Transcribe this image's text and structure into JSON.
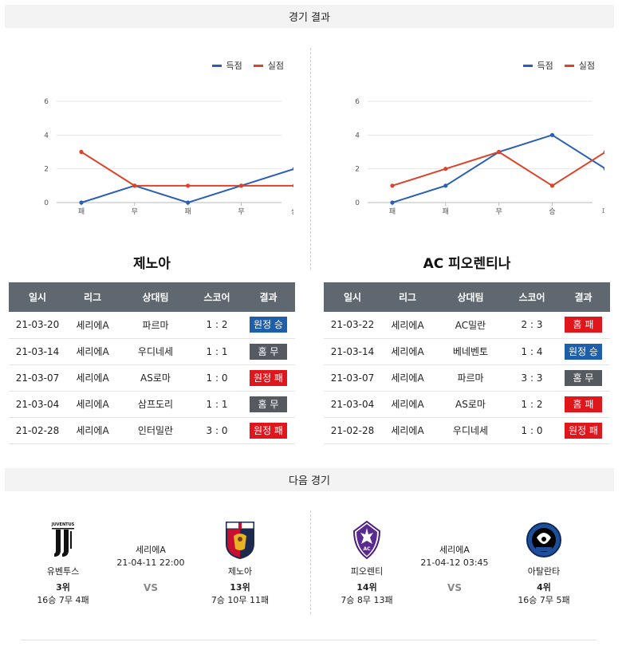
{
  "sections": {
    "results_title": "경기 결과",
    "next_title": "다음 경기"
  },
  "legend": {
    "scored": "득점",
    "conceded": "실점"
  },
  "colors": {
    "scored": "#2b5fb4",
    "conceded": "#d9442b",
    "win": "#1f5ea8",
    "lose": "#e0161d",
    "draw": "#555a60",
    "header": "#5f6771"
  },
  "chart_data": [
    {
      "type": "line",
      "categories": [
        "패",
        "무",
        "패",
        "무",
        "승"
      ],
      "ylim": [
        0,
        6
      ],
      "yticks": [
        0,
        2,
        4,
        6
      ],
      "series": [
        {
          "name": "득점",
          "values": [
            0,
            1,
            0,
            1,
            2
          ]
        },
        {
          "name": "실점",
          "values": [
            3,
            1,
            1,
            1,
            1
          ]
        }
      ]
    },
    {
      "type": "line",
      "categories": [
        "패",
        "패",
        "무",
        "승",
        "패"
      ],
      "ylim": [
        0,
        6
      ],
      "yticks": [
        0,
        2,
        4,
        6
      ],
      "series": [
        {
          "name": "득점",
          "values": [
            0,
            1,
            3,
            4,
            2
          ]
        },
        {
          "name": "실점",
          "values": [
            1,
            2,
            3,
            1,
            3
          ]
        }
      ]
    }
  ],
  "teams": [
    {
      "title": "제노아",
      "headers": [
        "일시",
        "리그",
        "상대팀",
        "스코어",
        "결과"
      ],
      "rows": [
        {
          "date": "21-03-20",
          "league": "세리에A",
          "opponent": "파르마",
          "score": "1 : 2",
          "result": "원정 승",
          "kind": "win"
        },
        {
          "date": "21-03-14",
          "league": "세리에A",
          "opponent": "우디네세",
          "score": "1 : 1",
          "result": "홈 무",
          "kind": "draw"
        },
        {
          "date": "21-03-07",
          "league": "세리에A",
          "opponent": "AS로마",
          "score": "1 : 0",
          "result": "원정 패",
          "kind": "lose"
        },
        {
          "date": "21-03-04",
          "league": "세리에A",
          "opponent": "삼프도리",
          "score": "1 : 1",
          "result": "홈 무",
          "kind": "draw"
        },
        {
          "date": "21-02-28",
          "league": "세리에A",
          "opponent": "인터밀란",
          "score": "3 : 0",
          "result": "원정 패",
          "kind": "lose"
        }
      ]
    },
    {
      "title": "AC 피오렌티나",
      "headers": [
        "일시",
        "리그",
        "상대팀",
        "스코어",
        "결과"
      ],
      "rows": [
        {
          "date": "21-03-22",
          "league": "세리에A",
          "opponent": "AC밀란",
          "score": "2 : 3",
          "result": "홈 패",
          "kind": "lose"
        },
        {
          "date": "21-03-14",
          "league": "세리에A",
          "opponent": "베네벤토",
          "score": "1 : 4",
          "result": "원정 승",
          "kind": "win"
        },
        {
          "date": "21-03-07",
          "league": "세리에A",
          "opponent": "파르마",
          "score": "3 : 3",
          "result": "홈 무",
          "kind": "draw"
        },
        {
          "date": "21-03-04",
          "league": "세리에A",
          "opponent": "AS로마",
          "score": "1 : 2",
          "result": "홈 패",
          "kind": "lose"
        },
        {
          "date": "21-02-28",
          "league": "세리에A",
          "opponent": "우디네세",
          "score": "1 : 0",
          "result": "원정 패",
          "kind": "lose"
        }
      ]
    }
  ],
  "next_matches": [
    {
      "league": "세리에A",
      "datetime": "21-04-11 22:00",
      "vs": "VS",
      "home": {
        "name": "유벤투스",
        "rank": "3위",
        "record": "16승 7무 4패",
        "logo_icon": "juventus-logo-icon",
        "logo_text": "JUVENTUS"
      },
      "away": {
        "name": "제노아",
        "rank": "13위",
        "record": "7승 10무 11패",
        "logo_icon": "genoa-logo-icon"
      }
    },
    {
      "league": "세리에A",
      "datetime": "21-04-12 03:45",
      "vs": "VS",
      "home": {
        "name": "피오렌티",
        "rank": "14위",
        "record": "7승 8무 13패",
        "logo_icon": "fiorentina-logo-icon"
      },
      "away": {
        "name": "아탈란타",
        "rank": "4위",
        "record": "16승 7무 5패",
        "logo_icon": "atalanta-logo-icon"
      }
    }
  ]
}
